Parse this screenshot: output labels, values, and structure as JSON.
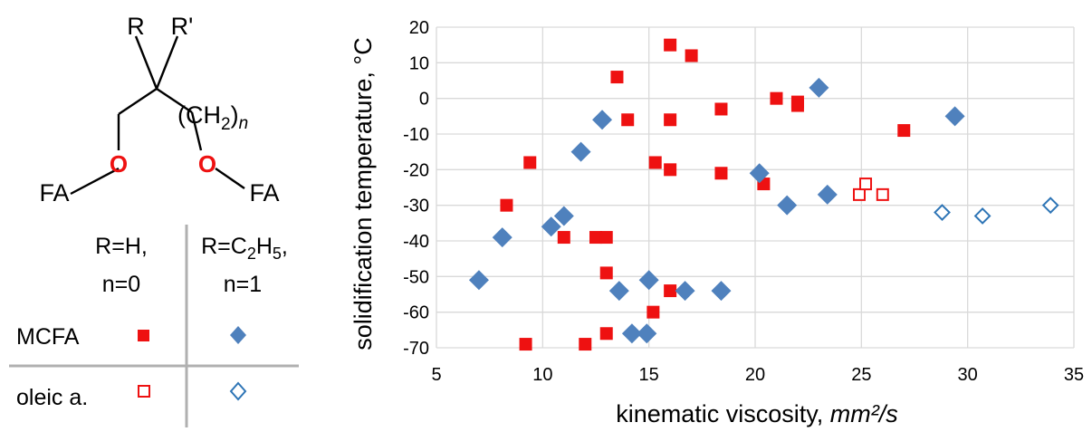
{
  "structure": {
    "substituent_r": "R",
    "substituent_r_prime": "R'",
    "chain_label": "(CH",
    "chain_subscript": "2",
    "chain_close": ")",
    "chain_n": "n",
    "oxygen_left": "O",
    "oxygen_right": "O",
    "fa_left": "FA",
    "fa_right": "FA"
  },
  "legend_table": {
    "col1_line1": "R=H,",
    "col1_line2": "n=0",
    "col2_line1_prefix": "R=C",
    "col2_sub1": "2",
    "col2_mid": "H",
    "col2_sub2": "5",
    "col2_suffix": ",",
    "col2_line2": "n=1",
    "row1_label": "MCFA",
    "row2_label": "oleic a."
  },
  "colors": {
    "red_series": "#ee1111",
    "blue_series": "#4f81bd",
    "blue_open": "#2e75b6",
    "grid": "#d9d9d9",
    "oxygen": "#ee1111",
    "table_lines": "#b0b0b0"
  },
  "chart_data": {
    "type": "scatter",
    "xlabel_prefix": "kinematic viscosity, ",
    "xlabel_unit": "mm²/s",
    "ylabel": "solidification temperature, °C",
    "xlim": [
      5,
      35
    ],
    "ylim": [
      -70,
      20
    ],
    "x_ticks": [
      5,
      10,
      15,
      20,
      25,
      30,
      35
    ],
    "y_ticks": [
      20,
      10,
      0,
      -10,
      -20,
      -30,
      -40,
      -50,
      -60,
      -70
    ],
    "grid": true,
    "series": [
      {
        "key": "mcfa_r_h",
        "marker": "square-filled",
        "color": "#ee1111",
        "points": [
          [
            9.2,
            -69
          ],
          [
            9.4,
            -18
          ],
          [
            8.3,
            -30
          ],
          [
            11.0,
            -39
          ],
          [
            12.0,
            -69
          ],
          [
            12.5,
            -39
          ],
          [
            13.0,
            -39
          ],
          [
            13.0,
            -49
          ],
          [
            13.0,
            -66
          ],
          [
            13.5,
            6
          ],
          [
            14.0,
            -6
          ],
          [
            15.2,
            -60
          ],
          [
            15.3,
            -18
          ],
          [
            16.0,
            15
          ],
          [
            16.0,
            -6
          ],
          [
            16.0,
            -20
          ],
          [
            16.0,
            -54
          ],
          [
            17.0,
            12
          ],
          [
            18.4,
            -3
          ],
          [
            18.4,
            -21
          ],
          [
            20.4,
            -24
          ],
          [
            21.0,
            0
          ],
          [
            22.0,
            -1
          ],
          [
            22.0,
            -2
          ],
          [
            27.0,
            -9
          ]
        ]
      },
      {
        "key": "mcfa_r_c2h5",
        "marker": "diamond-filled",
        "color": "#4f81bd",
        "points": [
          [
            7.0,
            -51
          ],
          [
            8.1,
            -39
          ],
          [
            10.4,
            -36
          ],
          [
            11.0,
            -33
          ],
          [
            11.8,
            -15
          ],
          [
            12.8,
            -6
          ],
          [
            13.6,
            -54
          ],
          [
            14.2,
            -66
          ],
          [
            14.9,
            -66
          ],
          [
            15.0,
            -51
          ],
          [
            16.7,
            -54
          ],
          [
            18.4,
            -54
          ],
          [
            20.2,
            -21
          ],
          [
            21.5,
            -30
          ],
          [
            23.0,
            3
          ],
          [
            23.4,
            -27
          ],
          [
            29.4,
            -5
          ]
        ]
      },
      {
        "key": "oleic_r_h",
        "marker": "square-open",
        "color": "#ee1111",
        "points": [
          [
            24.9,
            -27
          ],
          [
            25.2,
            -24
          ],
          [
            26.0,
            -27
          ]
        ]
      },
      {
        "key": "oleic_r_c2h5",
        "marker": "diamond-open",
        "color": "#2e75b6",
        "points": [
          [
            28.8,
            -32
          ],
          [
            30.7,
            -33
          ],
          [
            33.9,
            -30
          ]
        ]
      }
    ]
  }
}
